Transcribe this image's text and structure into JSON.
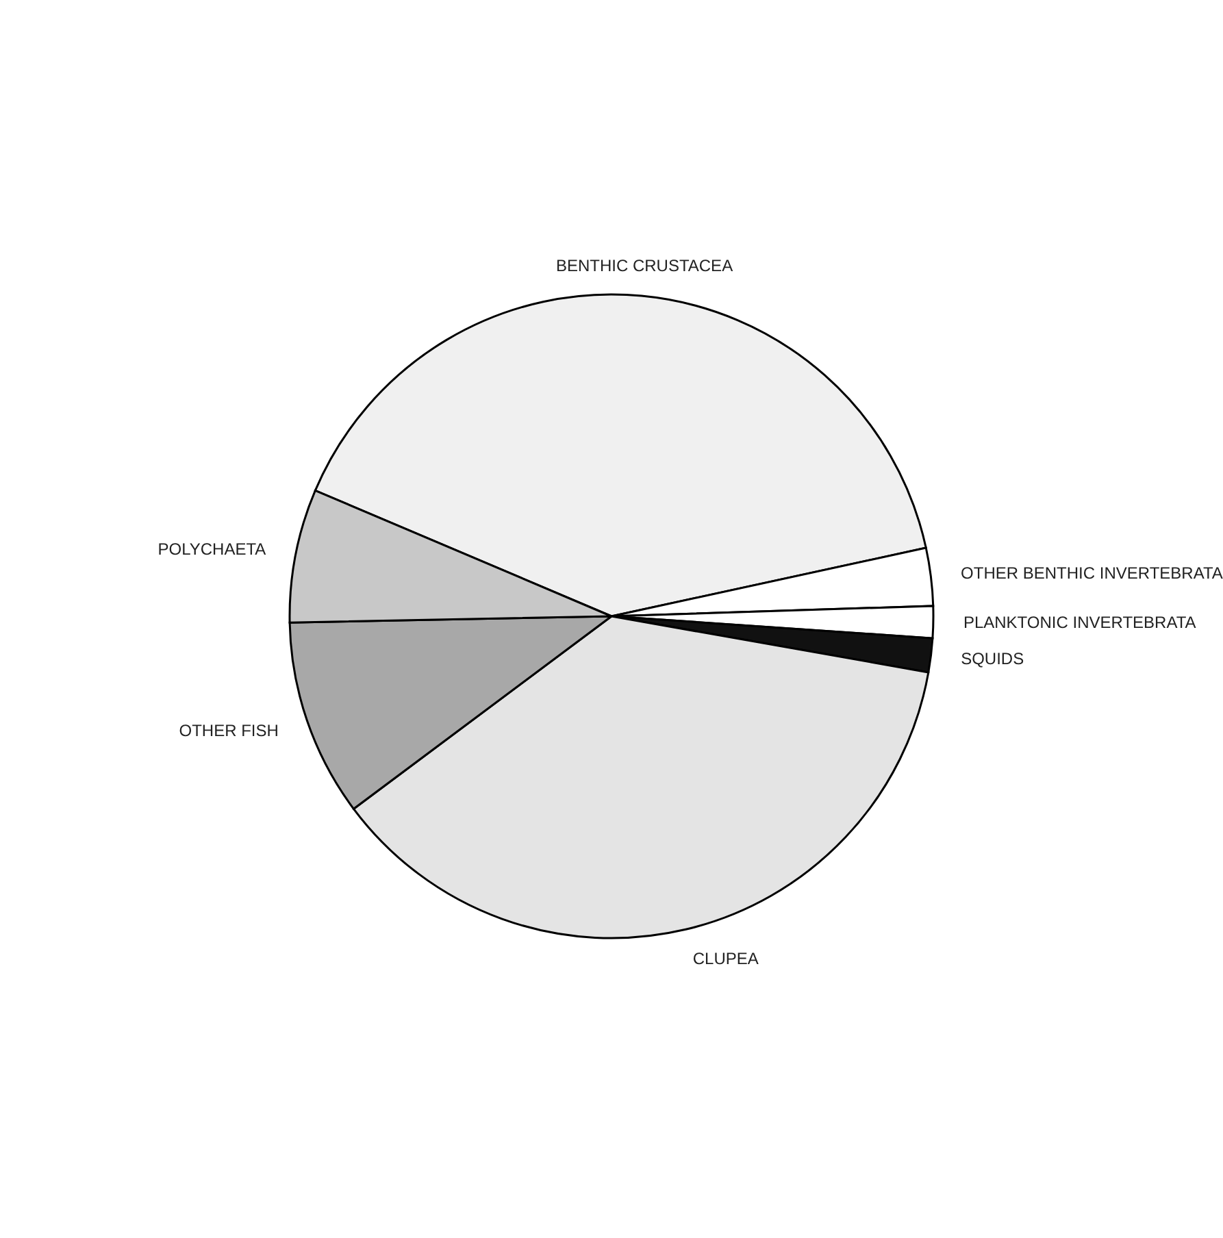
{
  "chart_data": {
    "type": "pie",
    "categories": [
      "BENTHIC CRUSTACEA",
      "OTHER BENTHIC INVERTEBRATA",
      "PLANKTONIC INVERTEBRATA",
      "SQUIDS",
      "CLUPEA",
      "OTHER FISH",
      "POLYCHAETA"
    ],
    "values": [
      40.2,
      2.9,
      1.6,
      1.7,
      37.0,
      9.9,
      6.7
    ],
    "colors": [
      "#f0f0f0",
      "#ffffff",
      "#ffffff",
      "#111111",
      "#e4e4e4",
      "#a8a8a8",
      "#c8c8c8"
    ],
    "legend": false
  }
}
